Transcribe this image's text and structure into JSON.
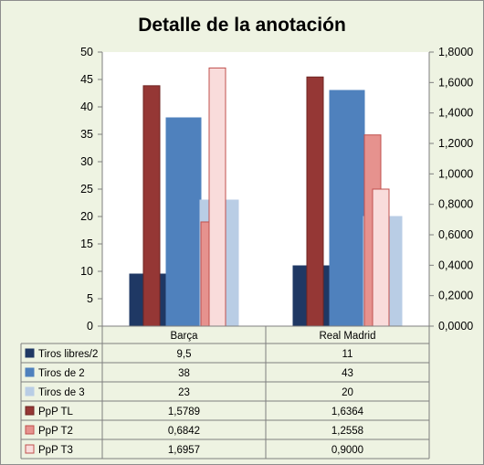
{
  "chart_data": {
    "type": "bar",
    "title": "Detalle de la anotación",
    "categories": [
      "Barça",
      "Real Madrid"
    ],
    "y_left": {
      "range": [
        0,
        50
      ],
      "ticks": [
        "0",
        "5",
        "10",
        "15",
        "20",
        "25",
        "30",
        "35",
        "40",
        "45",
        "50"
      ]
    },
    "y_right": {
      "range": [
        0,
        1.8
      ],
      "ticks": [
        "0,0000",
        "0,2000",
        "0,4000",
        "0,6000",
        "0,8000",
        "1,0000",
        "1,2000",
        "1,4000",
        "1,6000",
        "1,8000"
      ]
    },
    "grid": false,
    "legend": "data-table",
    "series": [
      {
        "name": "Tiros libres/2",
        "axis": "left",
        "values": [
          9.5,
          11
        ],
        "labels": [
          "9,5",
          "11"
        ],
        "color": "#1f3864",
        "border": "#1f3864"
      },
      {
        "name": "Tiros de 2",
        "axis": "left",
        "values": [
          38,
          43
        ],
        "labels": [
          "38",
          "43"
        ],
        "color": "#4f81bd",
        "border": "#4f81bd"
      },
      {
        "name": "Tiros de 3",
        "axis": "left",
        "values": [
          23,
          20
        ],
        "labels": [
          "23",
          "20"
        ],
        "color": "#b9cde5",
        "border": "#b9cde5"
      },
      {
        "name": "PpP TL",
        "axis": "right",
        "values": [
          1.5789,
          1.6364
        ],
        "labels": [
          "1,5789",
          "1,6364"
        ],
        "color": "#953735",
        "border": "#6f2422"
      },
      {
        "name": "PpP T2",
        "axis": "right",
        "values": [
          0.6842,
          1.2558
        ],
        "labels": [
          "0,6842",
          "1,2558"
        ],
        "color": "#e6928e",
        "border": "#c0504d"
      },
      {
        "name": "PpP T3",
        "axis": "right",
        "values": [
          1.6957,
          0.9
        ],
        "labels": [
          "1,6957",
          "0,9000"
        ],
        "color": "#f9dcdb",
        "border": "#c0504d"
      }
    ]
  }
}
